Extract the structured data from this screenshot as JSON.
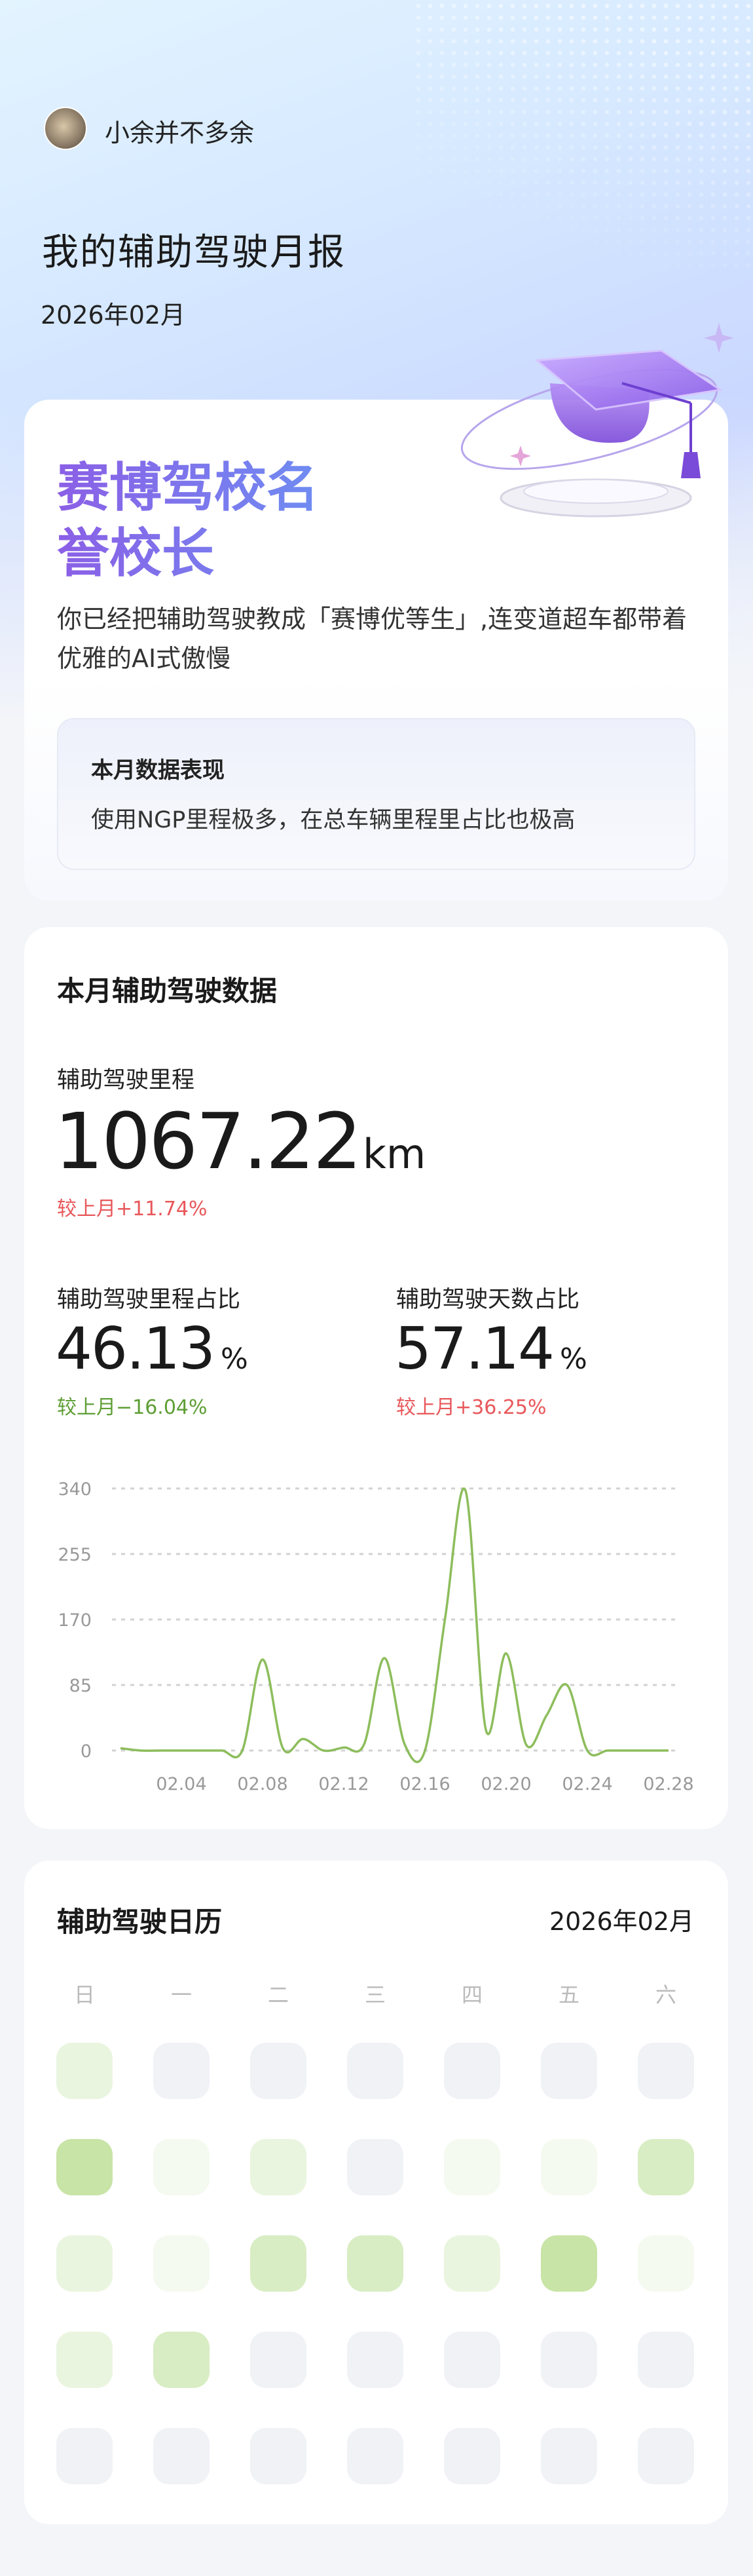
{
  "header": {
    "username": "小余并不多余",
    "title": "我的辅助驾驶月报",
    "month": "2026年02月"
  },
  "badge": {
    "title_line1": "赛博驾校名",
    "title_line2": "誉校长",
    "description": "你已经把辅助驾驶教成「赛博优等生」,连变道超车都带着优雅的AI式傲慢",
    "icon": "graduation-cap-icon",
    "performance": {
      "title": "本月数据表现",
      "text": "使用NGP里程极多，在总车辆里程里占比也极高"
    }
  },
  "stats": {
    "title": "本月辅助驾驶数据",
    "mileage": {
      "label": "辅助驾驶里程",
      "value": "1067.22",
      "unit": "km",
      "change": "较上月+11.74%"
    },
    "mileage_share": {
      "label": "辅助驾驶里程占比",
      "value": "46.13",
      "unit": "%",
      "change": "较上月−16.04%"
    },
    "days_share": {
      "label": "辅助驾驶天数占比",
      "value": "57.14",
      "unit": "%",
      "change": "较上月+36.25%"
    }
  },
  "colors": {
    "up": "#e8575a",
    "down": "#5e9e35",
    "line": "#8dbd5c",
    "title_gradient": [
      "#8b5fe6",
      "#6f8cf2"
    ]
  },
  "chart_data": {
    "type": "line",
    "xlabel": "",
    "ylabel": "",
    "ylim": [
      0,
      340
    ],
    "yticks": [
      "0",
      "85",
      "170",
      "255",
      "340"
    ],
    "xticks": [
      "02.04",
      "02.08",
      "02.12",
      "02.16",
      "02.20",
      "02.24",
      "02.28"
    ],
    "x": [
      "02.01",
      "02.02",
      "02.03",
      "02.04",
      "02.05",
      "02.06",
      "02.07",
      "02.08",
      "02.09",
      "02.10",
      "02.11",
      "02.12",
      "02.13",
      "02.14",
      "02.15",
      "02.16",
      "02.17",
      "02.18",
      "02.19",
      "02.20",
      "02.21",
      "02.22",
      "02.23",
      "02.24",
      "02.25",
      "02.26",
      "02.27",
      "02.28"
    ],
    "values": [
      3,
      0,
      0,
      0,
      0,
      0,
      0,
      118,
      3,
      15,
      0,
      4,
      8,
      120,
      8,
      0,
      173,
      337,
      27,
      126,
      7,
      46,
      85,
      0,
      0,
      0,
      0,
      0
    ],
    "grid": "horizontal-dashed",
    "legend": "none"
  },
  "calendar": {
    "title": "辅助驾驶日历",
    "month": "2026年02月",
    "weekdays": [
      "日",
      "一",
      "二",
      "三",
      "四",
      "五",
      "六"
    ],
    "levels": [
      2,
      0,
      0,
      0,
      0,
      0,
      0,
      4,
      1,
      2,
      0,
      1,
      1,
      3,
      2,
      1,
      3,
      3,
      2,
      4,
      1,
      2,
      3,
      0,
      0,
      0,
      0,
      0
    ],
    "level_colors": [
      "#f0f2f6",
      "#f5faf0",
      "#eaf5df",
      "#d8edc3",
      "#c8e4a6"
    ]
  }
}
